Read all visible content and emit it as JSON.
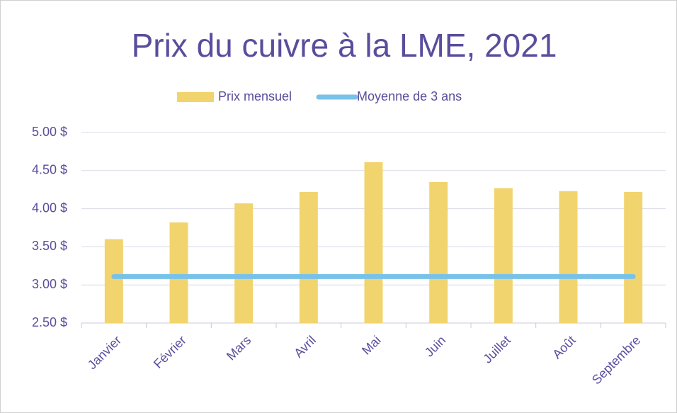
{
  "chart_data": {
    "type": "bar",
    "title": "Prix du cuivre à la LME, 2021",
    "categories": [
      "Janvier",
      "Février",
      "Mars",
      "Avril",
      "Mai",
      "Juin",
      "Juillet",
      "Août",
      "Septembre"
    ],
    "series": [
      {
        "name": "Prix mensuel",
        "type": "bar",
        "color": "#f2d46e",
        "values": [
          3.6,
          3.82,
          4.07,
          4.22,
          4.61,
          4.35,
          4.27,
          4.23,
          4.22
        ]
      },
      {
        "name": "Moyenne de 3 ans",
        "type": "line",
        "color": "#78c2ea",
        "values": [
          3.11,
          3.11,
          3.11,
          3.11,
          3.11,
          3.11,
          3.11,
          3.11,
          3.11
        ]
      }
    ],
    "ylim": [
      2.5,
      5.0
    ],
    "yticks": [
      {
        "value": 2.5,
        "label": "2.50 $"
      },
      {
        "value": 3.0,
        "label": "3.00 $"
      },
      {
        "value": 3.5,
        "label": "3.50 $"
      },
      {
        "value": 4.0,
        "label": "4.00 $"
      },
      {
        "value": 4.5,
        "label": "4.50 $"
      },
      {
        "value": 5.0,
        "label": "5.00 $"
      }
    ],
    "grid": true,
    "legend": "top"
  }
}
